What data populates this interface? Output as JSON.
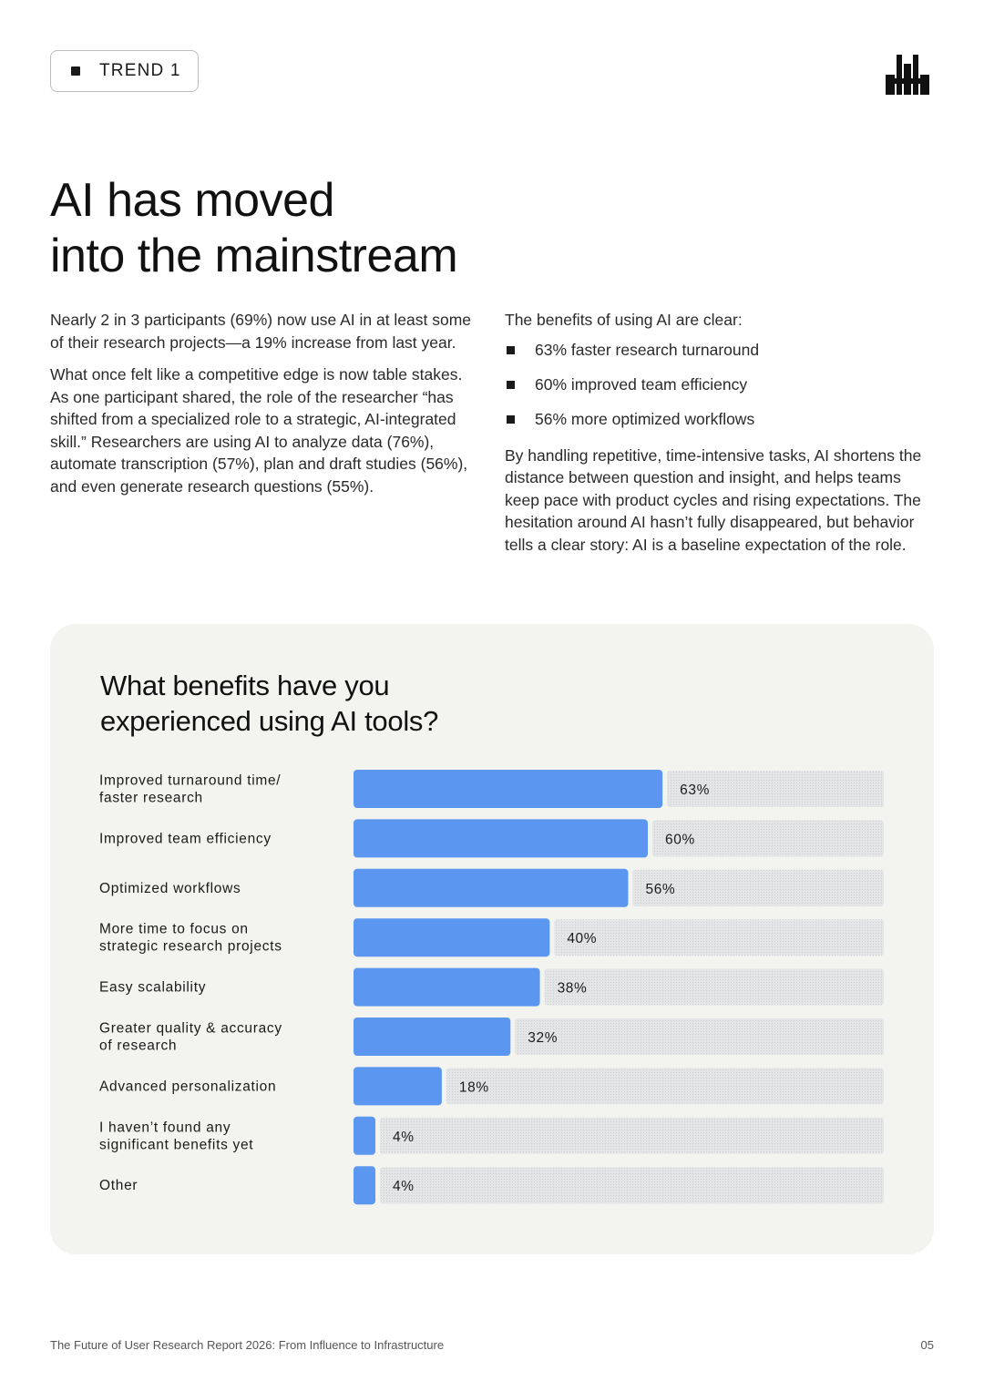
{
  "badge": {
    "label": "TREND 1"
  },
  "logo": {
    "icon": "bar-cluster-logo-icon"
  },
  "headline": {
    "line1": "AI has moved",
    "line2": "into the mainstream"
  },
  "left_column": {
    "paragraphs": [
      "Nearly 2 in 3 participants (69%) now use AI in at least some of their research projects—a 19% increase from last year.",
      "What once felt like a competitive edge is now table stakes. As one participant shared, the role of the researcher “has shifted from a specialized role to a strategic, AI-integrated skill.” Researchers are using AI to analyze data (76%), automate transcription (57%), plan and draft studies (56%), and even generate research questions (55%)."
    ]
  },
  "right_column": {
    "intro": "The benefits of using AI are clear:",
    "bullets": [
      "63% faster research turnaround",
      "60% improved team efficiency",
      "56% more optimized workflows"
    ],
    "closing": "By handling repetitive, time-intensive tasks, AI shortens the distance between question and insight, and helps teams keep pace with product cycles and rising expectations. The hesitation around AI hasn’t fully disappeared, but behavior tells a clear story: AI is a baseline expectation of the role."
  },
  "chart_data": {
    "type": "bar",
    "orientation": "horizontal",
    "title": "What benefits have you experienced using AI tools?",
    "title_lines": [
      "What benefits have you",
      "experienced using AI tools?"
    ],
    "categories": [
      [
        "Improved turnaround time/",
        "faster research"
      ],
      [
        "Improved team efficiency"
      ],
      [
        "Optimized workflows"
      ],
      [
        "More time to focus on",
        "strategic research projects"
      ],
      [
        "Easy scalability"
      ],
      [
        "Greater quality & accuracy",
        "of research"
      ],
      [
        "Advanced personalization"
      ],
      [
        "I haven’t found any",
        "significant benefits yet"
      ],
      [
        "Other"
      ]
    ],
    "values": [
      63,
      60,
      56,
      40,
      38,
      32,
      18,
      4,
      4
    ],
    "value_labels": [
      "63%",
      "60%",
      "56%",
      "40%",
      "38%",
      "32%",
      "18%",
      "4%",
      "4%"
    ],
    "xlim": [
      0,
      100
    ],
    "colors": {
      "bar": "#5b97f0",
      "remainder": "#dfe0e2",
      "card": "#f3f3f0"
    },
    "grid": false,
    "legend": "none"
  },
  "footer": {
    "report_title": "The Future of User Research Report 2026: From Influence to Infrastructure",
    "page_number": "05"
  }
}
